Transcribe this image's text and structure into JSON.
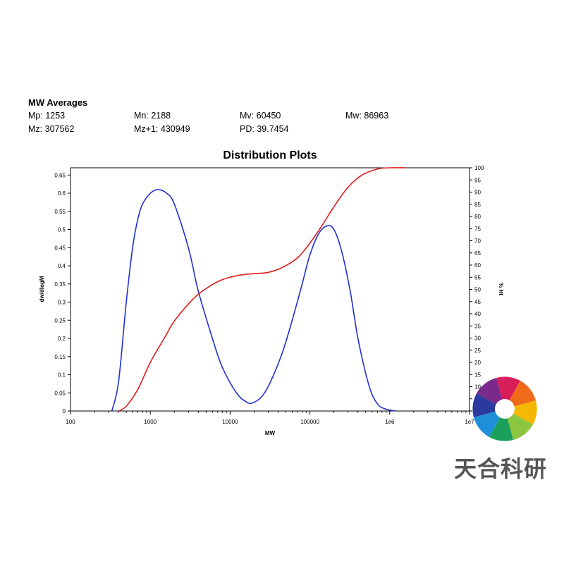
{
  "averages": {
    "title": "MW Averages",
    "items": [
      {
        "label": "Mp:",
        "value": "1253"
      },
      {
        "label": "Mn:",
        "value": "2188"
      },
      {
        "label": "Mv:",
        "value": "60450"
      },
      {
        "label": "Mw:",
        "value": "86963"
      },
      {
        "label": "Mz:",
        "value": "307562"
      },
      {
        "label": "Mz+1:",
        "value": "430949"
      },
      {
        "label": "PD:",
        "value": "39.7454"
      }
    ]
  },
  "chart_data": {
    "type": "line",
    "title": "Distribution Plots",
    "xlabel": "MW",
    "ylabel": "dw/dlogM",
    "y2label": "% Ht",
    "x_scale": "log",
    "xlim": [
      100,
      10000000
    ],
    "ylim": [
      0,
      0.67
    ],
    "y2lim": [
      0,
      100
    ],
    "x_ticks": [
      100,
      1000,
      10000,
      100000,
      1000000,
      10000000
    ],
    "x_tick_labels": [
      "100",
      "1000",
      "10000",
      "100000",
      "1e6",
      "1e7"
    ],
    "y_ticks": [
      0,
      0.05,
      0.1,
      0.15,
      0.2,
      0.25,
      0.3,
      0.35,
      0.4,
      0.45,
      0.5,
      0.55,
      0.6,
      0.65
    ],
    "y_tick_labels": [
      "0",
      "0.05",
      "0.1",
      "0.15",
      "0.2",
      "0.25",
      "0.3",
      "0.35",
      "0.4",
      "0.45",
      "0.5",
      "0.55",
      "0.6",
      "0.65"
    ],
    "y2_ticks": [
      0,
      5,
      10,
      15,
      20,
      25,
      30,
      35,
      40,
      45,
      50,
      55,
      60,
      65,
      70,
      75,
      80,
      85,
      90,
      95,
      100
    ],
    "y2_tick_labels": [
      "0",
      "5",
      "10",
      "15",
      "20",
      "25",
      "30",
      "35",
      "40",
      "45",
      "50",
      "55",
      "60",
      "65",
      "70",
      "75",
      "80",
      "85",
      "90",
      "95",
      "100"
    ],
    "grid": false,
    "series": [
      {
        "axis": "left",
        "color": "#1f2fd6",
        "x": [
          330,
          400,
          500,
          600,
          700,
          800,
          1000,
          1250,
          1600,
          2000,
          3000,
          4000,
          6000,
          8000,
          12000,
          16000,
          19000,
          25000,
          32000,
          45000,
          60000,
          80000,
          100000,
          130000,
          165000,
          200000,
          250000,
          320000,
          400000,
          550000,
          700000,
          900000,
          1200000
        ],
        "y": [
          0.0,
          0.08,
          0.3,
          0.45,
          0.53,
          0.57,
          0.6,
          0.61,
          0.6,
          0.57,
          0.45,
          0.33,
          0.2,
          0.12,
          0.05,
          0.025,
          0.022,
          0.04,
          0.08,
          0.16,
          0.25,
          0.35,
          0.43,
          0.49,
          0.51,
          0.5,
          0.44,
          0.33,
          0.2,
          0.07,
          0.02,
          0.005,
          0.0
        ]
      },
      {
        "axis": "right",
        "color": "#e01a1a",
        "x": [
          400,
          500,
          700,
          1000,
          1500,
          2000,
          3000,
          4000,
          6000,
          8000,
          10000,
          14000,
          20000,
          30000,
          45000,
          70000,
          100000,
          140000,
          200000,
          300000,
          450000,
          700000,
          1000000,
          1600000
        ],
        "y": [
          0.0,
          2,
          9,
          20,
          30,
          37,
          44,
          48,
          52,
          54,
          55,
          56,
          56.5,
          57,
          59,
          63,
          69,
          76,
          84,
          92,
          97,
          99.5,
          100,
          100
        ]
      }
    ]
  }
}
